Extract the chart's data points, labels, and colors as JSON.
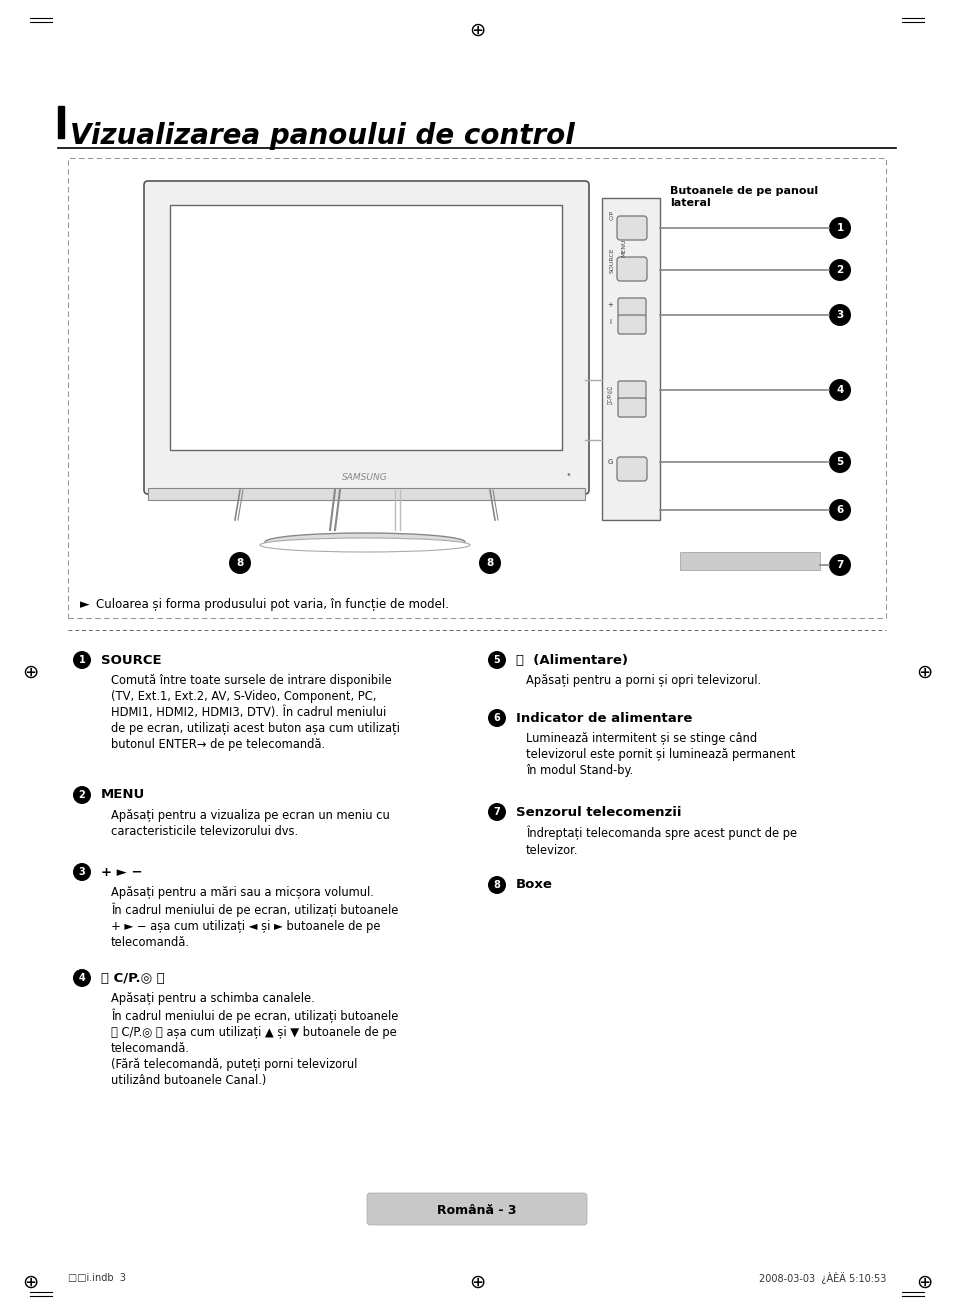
{
  "title": "Vizualizarea panoului de control",
  "bg_color": "#ffffff",
  "page_label": "Română - 3",
  "footer_left": "□□i.indb  3",
  "footer_right": "2008-03-03  ¿ÀÈÄ 5:10:53",
  "note_text": "Culoarea și forma produsului pot varia, în funcție de model.",
  "panel_label": "Butoanele de pe panoul\nlateral",
  "s1_head": "SOURCE",
  "s1_body": "Comută între toate sursele de intrare disponibile\n(TV, Ext.1, Ext.2, AV, S-Video, Component, PC,\nHDMI1, HDMI2, HDMI3, DTV). În cadrul meniului\nde pe ecran, utilizați acest buton așa cum utilizați\nbutonul ENTER→ de pe telecomandă.",
  "s2_head": "MENU",
  "s2_body": "Apăsați pentru a vizualiza pe ecran un meniu cu\ncaracteristicile televizorului dvs.",
  "s3_head": "+ ► −",
  "s3_body": "Apăsați pentru a mări sau a micșora volumul.\nÎn cadrul meniului de pe ecran, utilizați butoanele\n+ ► − așa cum utilizați ◄ și ► butoanele de pe\ntelecomandă.",
  "s4_head": "〈 C/P.◎ 〉",
  "s4_body": "Apăsați pentru a schimba canalele.\nÎn cadrul meniului de pe ecran, utilizați butoanele\n〈 C/P.◎ 〉 așa cum utilizați ▲ și ▼ butoanele de pe\ntelecomandă.\n(Fără telecomandă, puteți porni televizorul\nutilizând butoanele Canal.)",
  "s5_head": "⏻  (Alimentare)",
  "s5_body": "Apăsați pentru a porni și opri televizorul.",
  "s6_head": "Indicator de alimentare",
  "s6_body": "Luminează intermitent și se stinge când\ntelevizorul este pornit și luminează permanent\nîn modul Stand-by.",
  "s7_head": "Senzorul telecomenzii",
  "s7_body": "Îndreptați telecomanda spre acest punct de pe\ntelevizor.",
  "s8_head": "Boxe",
  "s8_body": ""
}
